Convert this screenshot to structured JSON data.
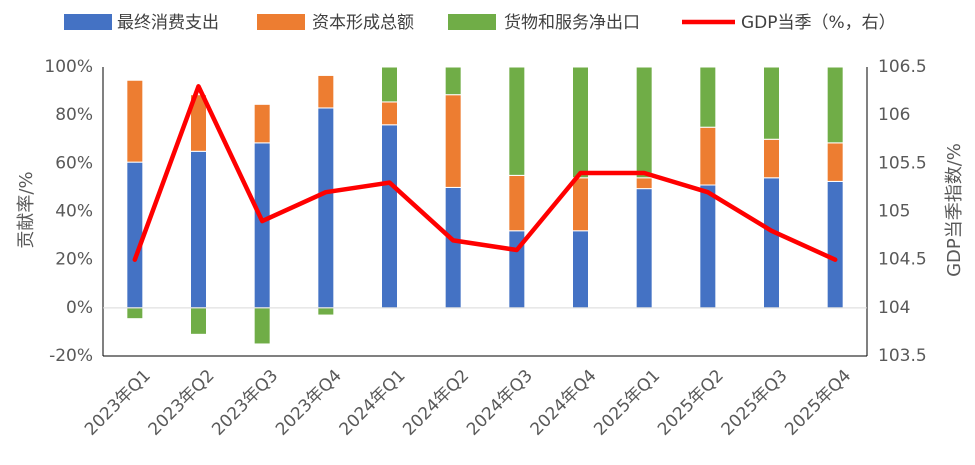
{
  "chart_data": {
    "type": "bar",
    "stacked": true,
    "categories": [
      "2023年Q1",
      "2023年Q2",
      "2023年Q3",
      "2023年Q4",
      "2024年Q1",
      "2024年Q2",
      "2024年Q3",
      "2024年Q4",
      "2025年Q1",
      "2025年Q2",
      "2025年Q3",
      "2025年Q4"
    ],
    "series": [
      {
        "name": "最终消费支出",
        "axis": "left",
        "color": "#4472C4",
        "values": [
          60.5,
          65,
          68.5,
          83,
          76,
          50,
          32,
          32,
          49.5,
          51,
          54,
          52.5
        ]
      },
      {
        "name": "资本形成总额",
        "axis": "left",
        "color": "#ED7D31",
        "values": [
          34,
          23.5,
          16,
          13.5,
          9.5,
          38.5,
          23,
          22,
          4.5,
          24,
          16,
          16
        ]
      },
      {
        "name": "货物和服务净出口",
        "axis": "left",
        "color": "#70AD47",
        "values": [
          -4.5,
          -11,
          -15,
          -3,
          14.5,
          11.5,
          45,
          46,
          46,
          25,
          30,
          31.5
        ]
      },
      {
        "name": "GDP当季（%，右）",
        "type": "line",
        "axis": "right",
        "color": "#FF0000",
        "values": [
          104.5,
          106.3,
          104.9,
          105.2,
          105.3,
          104.7,
          104.6,
          105.4,
          105.4,
          105.2,
          104.8,
          104.5
        ]
      }
    ],
    "ylabel": "贡献率/%",
    "ylabel_right": "GDP当季指数/%",
    "ylim": [
      -20,
      100
    ],
    "y_ticks": [
      "-20%",
      "0%",
      "20%",
      "40%",
      "60%",
      "80%",
      "100%"
    ],
    "ylim_right": [
      103.5,
      106.5
    ],
    "y2_ticks": [
      "103.5",
      "104",
      "104.5",
      "105",
      "105.5",
      "106",
      "106.5"
    ],
    "legend_position": "top",
    "grid": false
  }
}
